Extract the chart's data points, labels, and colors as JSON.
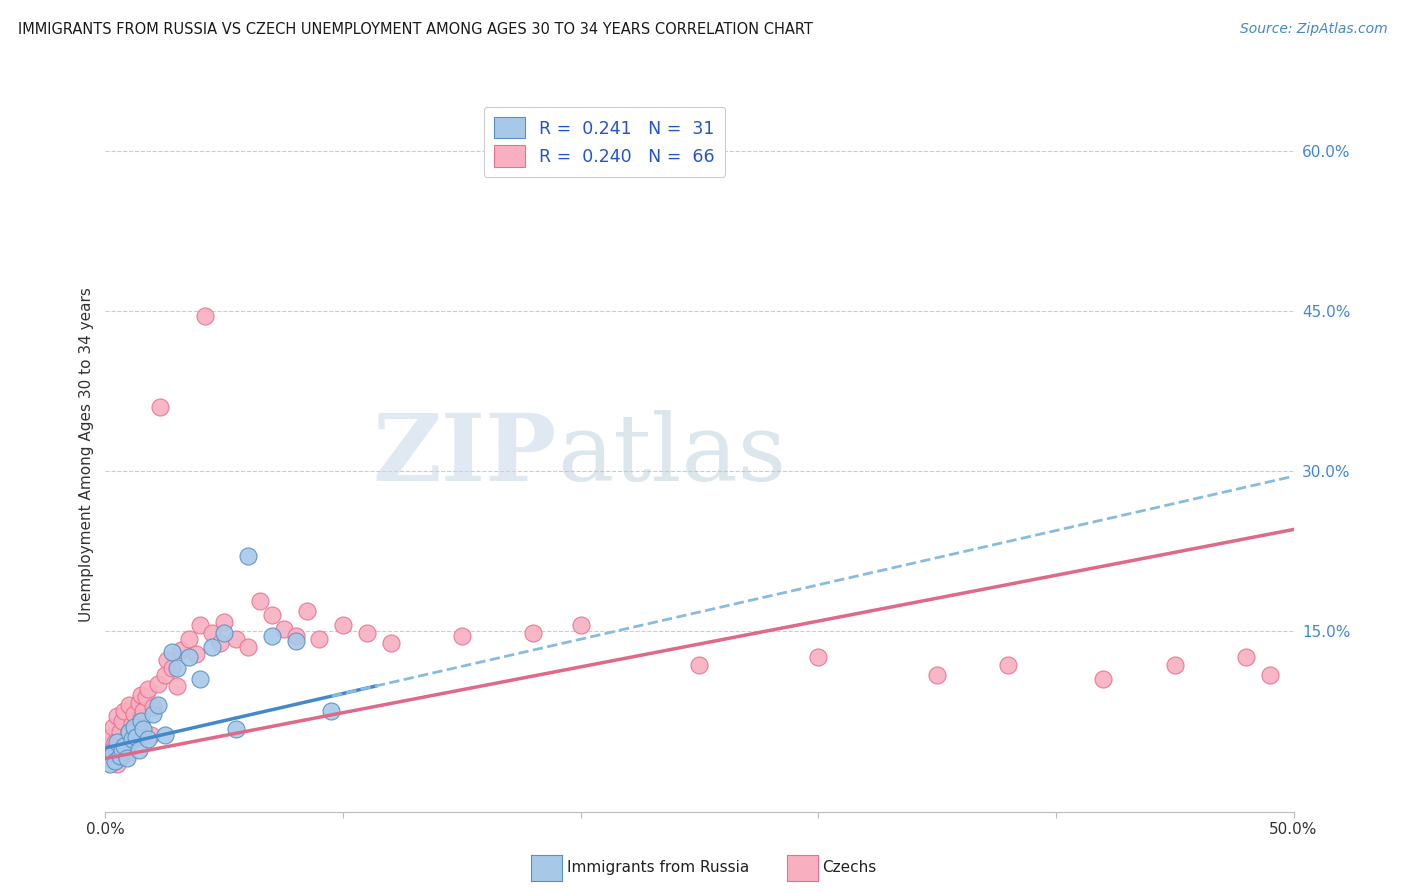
{
  "title": "IMMIGRANTS FROM RUSSIA VS CZECH UNEMPLOYMENT AMONG AGES 30 TO 34 YEARS CORRELATION CHART",
  "source": "Source: ZipAtlas.com",
  "ylabel": "Unemployment Among Ages 30 to 34 years",
  "xlim": [
    0.0,
    0.5
  ],
  "ylim": [
    -0.02,
    0.65
  ],
  "xticks": [
    0.0,
    0.1,
    0.2,
    0.3,
    0.4,
    0.5
  ],
  "xticklabels": [
    "0.0%",
    "",
    "",
    "",
    "",
    "50.0%"
  ],
  "yticks_right": [
    0.15,
    0.3,
    0.45,
    0.6
  ],
  "ytick_right_labels": [
    "15.0%",
    "30.0%",
    "45.0%",
    "60.0%"
  ],
  "russia_color": "#a8c8e8",
  "russia_edge": "#5590c8",
  "czech_color": "#f8b0c0",
  "czech_edge": "#e87090",
  "russia_R": "0.241",
  "russia_N": 31,
  "czech_R": "0.240",
  "czech_N": 66,
  "russia_scatter_x": [
    0.001,
    0.002,
    0.003,
    0.004,
    0.005,
    0.006,
    0.007,
    0.008,
    0.009,
    0.01,
    0.011,
    0.012,
    0.013,
    0.014,
    0.015,
    0.016,
    0.018,
    0.02,
    0.022,
    0.025,
    0.028,
    0.03,
    0.035,
    0.04,
    0.045,
    0.05,
    0.055,
    0.06,
    0.07,
    0.08,
    0.095
  ],
  "russia_scatter_y": [
    0.03,
    0.025,
    0.035,
    0.028,
    0.045,
    0.032,
    0.038,
    0.042,
    0.03,
    0.055,
    0.048,
    0.06,
    0.05,
    0.038,
    0.065,
    0.058,
    0.048,
    0.072,
    0.08,
    0.052,
    0.13,
    0.115,
    0.125,
    0.105,
    0.135,
    0.148,
    0.058,
    0.22,
    0.145,
    0.14,
    0.075
  ],
  "czech_scatter_x": [
    0.001,
    0.002,
    0.002,
    0.003,
    0.003,
    0.004,
    0.004,
    0.005,
    0.005,
    0.006,
    0.006,
    0.007,
    0.007,
    0.008,
    0.008,
    0.009,
    0.01,
    0.01,
    0.011,
    0.012,
    0.012,
    0.013,
    0.014,
    0.015,
    0.015,
    0.016,
    0.017,
    0.018,
    0.019,
    0.02,
    0.022,
    0.023,
    0.025,
    0.026,
    0.028,
    0.03,
    0.032,
    0.035,
    0.038,
    0.04,
    0.042,
    0.045,
    0.048,
    0.05,
    0.055,
    0.06,
    0.065,
    0.07,
    0.075,
    0.08,
    0.085,
    0.09,
    0.1,
    0.11,
    0.12,
    0.15,
    0.18,
    0.2,
    0.25,
    0.3,
    0.35,
    0.38,
    0.42,
    0.45,
    0.48,
    0.49
  ],
  "czech_scatter_y": [
    0.042,
    0.038,
    0.05,
    0.032,
    0.06,
    0.028,
    0.045,
    0.025,
    0.07,
    0.038,
    0.055,
    0.032,
    0.065,
    0.042,
    0.075,
    0.035,
    0.055,
    0.08,
    0.062,
    0.048,
    0.072,
    0.058,
    0.082,
    0.068,
    0.09,
    0.075,
    0.088,
    0.095,
    0.052,
    0.078,
    0.1,
    0.36,
    0.108,
    0.122,
    0.115,
    0.098,
    0.132,
    0.142,
    0.128,
    0.155,
    0.445,
    0.148,
    0.138,
    0.158,
    0.142,
    0.135,
    0.178,
    0.165,
    0.152,
    0.145,
    0.168,
    0.142,
    0.155,
    0.148,
    0.138,
    0.145,
    0.148,
    0.155,
    0.118,
    0.125,
    0.108,
    0.118,
    0.105,
    0.118,
    0.125,
    0.108
  ],
  "watermark_zip": "ZIP",
  "watermark_atlas": "atlas",
  "bg_color": "#ffffff",
  "grid_color": "#cccccc",
  "title_color": "#1a1a1a",
  "source_color": "#4488cc",
  "axis_label_color": "#333333",
  "right_tick_color": "#4488cc",
  "legend_text_color": "#1a1a1a",
  "legend_value_color": "#2255cc"
}
